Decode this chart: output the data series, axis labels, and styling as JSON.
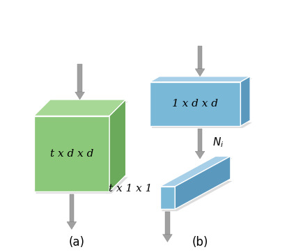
{
  "green_face": "#8bc87a",
  "green_top": "#a8d896",
  "green_side": "#6aaa5a",
  "blue_face": "#7ab8d8",
  "blue_top": "#a8cfe8",
  "blue_side": "#5a98be",
  "shadow_color": "#cccccc",
  "arrow_color": "#a0a0a0",
  "arrow_edge": "#808080",
  "label_a": "(a)",
  "label_b": "(b)",
  "text_green": "t x d x d",
  "text_blue_top": "1 x d x d",
  "text_blue_bot": "t x 1 x 1",
  "text_ni": "$N_i$"
}
